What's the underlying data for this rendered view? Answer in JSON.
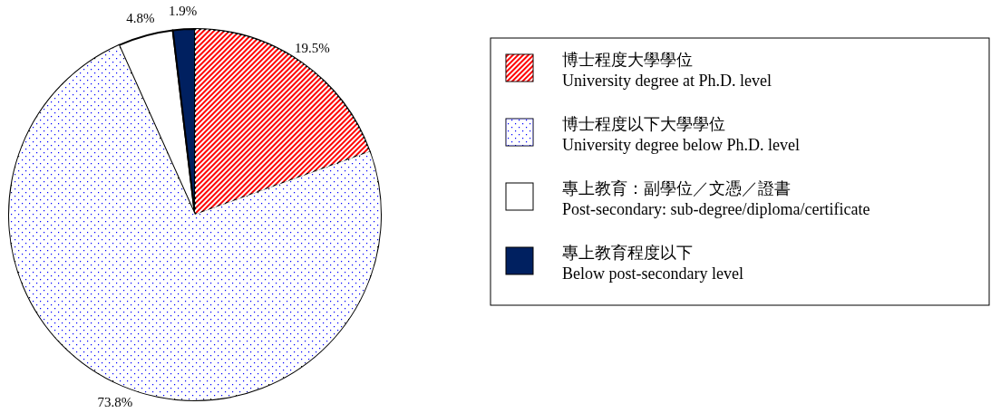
{
  "chart_data": {
    "type": "pie",
    "categories": [
      "博士程度大學學位\nUniversity degree at Ph.D. level",
      "博士程度以下大學學位\nUniversity degree below Ph.D. level",
      "專上教育：副學位／文憑／證書\nPost-secondary: sub-degree/diploma/certificate",
      "專上教育程度以下\nBelow post-secondary level"
    ],
    "values": [
      19.5,
      73.8,
      4.8,
      1.9
    ],
    "value_labels": [
      "19.5%",
      "73.8%",
      "4.8%",
      "1.9%"
    ],
    "colors": [
      "#ff0000",
      "#0000ff",
      "#ffffff",
      "#002060"
    ],
    "legend": "right"
  }
}
